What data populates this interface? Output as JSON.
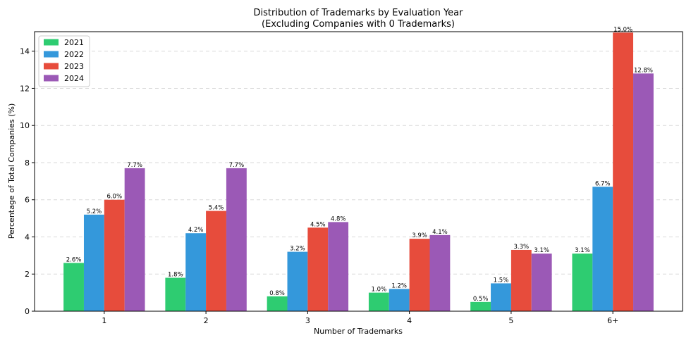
{
  "chart_data": {
    "type": "bar",
    "title_line1": "Distribution of Trademarks by Evaluation Year",
    "title_line2": "(Excluding Companies with 0 Trademarks)",
    "xlabel": "Number of Trademarks",
    "ylabel": "Percentage of Total Companies (%)",
    "categories": [
      "1",
      "2",
      "3",
      "4",
      "5",
      "6+"
    ],
    "ylim": [
      0,
      15.05
    ],
    "yticks": [
      0,
      2,
      4,
      6,
      8,
      10,
      12,
      14
    ],
    "grid": "y-dashed",
    "legend_position": "top-left",
    "series": [
      {
        "name": "2021",
        "color": "#2ecc71",
        "values": [
          2.6,
          1.8,
          0.8,
          1.0,
          0.5,
          3.1
        ],
        "labels": [
          "2.6%",
          "1.8%",
          "0.8%",
          "1.0%",
          "0.5%",
          "3.1%"
        ]
      },
      {
        "name": "2022",
        "color": "#3498db",
        "values": [
          5.2,
          4.2,
          3.2,
          1.2,
          1.5,
          6.7
        ],
        "labels": [
          "5.2%",
          "4.2%",
          "3.2%",
          "1.2%",
          "1.5%",
          "6.7%"
        ]
      },
      {
        "name": "2023",
        "color": "#e74c3c",
        "values": [
          6.0,
          5.4,
          4.5,
          3.9,
          3.3,
          15.0
        ],
        "labels": [
          "6.0%",
          "5.4%",
          "4.5%",
          "3.9%",
          "3.3%",
          "15.0%"
        ]
      },
      {
        "name": "2024",
        "color": "#9b59b6",
        "values": [
          7.7,
          7.7,
          4.8,
          4.1,
          3.1,
          12.8
        ],
        "labels": [
          "7.7%",
          "7.7%",
          "4.8%",
          "4.1%",
          "3.1%",
          "12.8%"
        ]
      }
    ]
  }
}
